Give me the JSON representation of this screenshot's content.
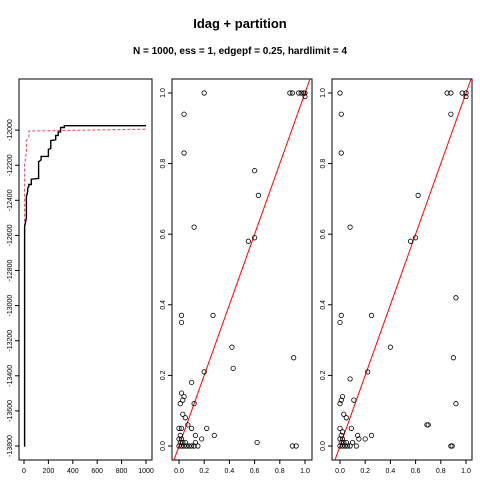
{
  "title": "Idag + partition",
  "subtitle": "N = 1000, ess = 1, edgepf = 0.25, hardlimit = 4",
  "colors": {
    "trace1": "#000000",
    "trace2": "#df536b",
    "diag": "#ff0000",
    "points": "#000000"
  },
  "chart_data": [
    {
      "type": "line",
      "xlim": [
        0,
        1000
      ],
      "ylim": [
        -13800,
        -11800
      ],
      "xticks": [
        "0",
        "200",
        "400",
        "600",
        "800",
        "1000"
      ],
      "xtick_values": [
        0,
        200,
        400,
        600,
        800,
        1000
      ],
      "yticks": [
        "-13800",
        "-13600",
        "-13400",
        "-13200",
        "-13000",
        "-12800",
        "-12600",
        "-12400",
        "-12200",
        "-12000"
      ],
      "ytick_values": [
        -13800,
        -13600,
        -13400,
        -13200,
        -13000,
        -12800,
        -12600,
        -12400,
        -12200,
        -12000
      ],
      "series": [
        {
          "x": [
            0,
            5,
            5,
            20,
            20,
            30,
            30,
            40,
            40,
            60,
            60,
            120,
            120,
            140,
            140,
            200,
            200,
            220,
            220,
            260,
            260,
            280,
            280,
            300,
            300,
            330,
            330,
            1000
          ],
          "y": [
            -13800,
            -13800,
            -12550,
            -12500,
            -12380,
            -12350,
            -12330,
            -12320,
            -12310,
            -12310,
            -12280,
            -12275,
            -12180,
            -12170,
            -12150,
            -12150,
            -12110,
            -12105,
            -12060,
            -12055,
            -12030,
            -12030,
            -12010,
            -12010,
            -11985,
            -11985,
            -11975,
            -11975
          ]
        },
        {
          "x": [
            0,
            5,
            5,
            20,
            20,
            40,
            40,
            1000
          ],
          "y": [
            -13800,
            -13800,
            -12200,
            -12120,
            -12060,
            -12040,
            -12005,
            -11995
          ]
        }
      ]
    },
    {
      "type": "scatter",
      "xlim": [
        0,
        1
      ],
      "ylim": [
        0,
        1
      ],
      "xticks": [
        "0.0",
        "0.2",
        "0.4",
        "0.6",
        "0.8",
        "1.0"
      ],
      "xtick_values": [
        0,
        0.2,
        0.4,
        0.6,
        0.8,
        1.0
      ],
      "yticks": [
        "0.0",
        "0.2",
        "0.4",
        "0.6",
        "0.8",
        "1.0"
      ],
      "ytick_values": [
        0,
        0.2,
        0.4,
        0.6,
        0.8,
        1.0
      ],
      "diagonal": true,
      "points": [
        [
          0.0,
          0.0
        ],
        [
          0.01,
          0.01
        ],
        [
          0.02,
          0.02
        ],
        [
          0.0,
          0.02
        ],
        [
          0.02,
          0.0
        ],
        [
          0.03,
          0.01
        ],
        [
          0.01,
          0.03
        ],
        [
          0.04,
          0.0
        ],
        [
          0.05,
          0.01
        ],
        [
          0.0,
          0.05
        ],
        [
          0.02,
          0.05
        ],
        [
          0.06,
          0.0
        ],
        [
          0.08,
          0.0
        ],
        [
          0.1,
          0.0
        ],
        [
          0.12,
          0.0
        ],
        [
          0.13,
          0.01
        ],
        [
          0.15,
          0.0
        ],
        [
          0.03,
          0.13
        ],
        [
          0.04,
          0.14
        ],
        [
          0.01,
          0.12
        ],
        [
          0.02,
          0.15
        ],
        [
          0.03,
          0.09
        ],
        [
          0.1,
          0.05
        ],
        [
          0.13,
          0.03
        ],
        [
          0.18,
          0.02
        ],
        [
          0.22,
          0.05
        ],
        [
          0.28,
          0.03
        ],
        [
          0.2,
          0.21
        ],
        [
          0.1,
          0.18
        ],
        [
          0.12,
          0.12
        ],
        [
          0.07,
          0.06
        ],
        [
          0.05,
          0.08
        ],
        [
          0.02,
          0.35
        ],
        [
          0.02,
          0.37
        ],
        [
          0.27,
          0.37
        ],
        [
          0.42,
          0.28
        ],
        [
          0.43,
          0.22
        ],
        [
          0.55,
          0.58
        ],
        [
          0.6,
          0.59
        ],
        [
          0.63,
          0.71
        ],
        [
          0.6,
          0.78
        ],
        [
          0.12,
          0.62
        ],
        [
          0.04,
          0.83
        ],
        [
          0.04,
          0.94
        ],
        [
          0.2,
          1.0
        ],
        [
          0.88,
          1.0
        ],
        [
          0.9,
          1.0
        ],
        [
          0.95,
          1.0
        ],
        [
          0.97,
          1.0
        ],
        [
          0.99,
          1.0
        ],
        [
          1.0,
          1.0
        ],
        [
          1.0,
          0.99
        ],
        [
          0.9,
          0.0
        ],
        [
          0.93,
          0.0
        ],
        [
          0.62,
          0.01
        ],
        [
          0.91,
          0.25
        ]
      ]
    },
    {
      "type": "scatter",
      "xlim": [
        0,
        1
      ],
      "ylim": [
        0,
        1
      ],
      "xticks": [
        "0.0",
        "0.2",
        "0.4",
        "0.6",
        "0.8",
        "1.0"
      ],
      "xtick_values": [
        0,
        0.2,
        0.4,
        0.6,
        0.8,
        1.0
      ],
      "yticks": [
        "0.0",
        "0.2",
        "0.4",
        "0.6",
        "0.8",
        "1.0"
      ],
      "ytick_values": [
        0,
        0.2,
        0.4,
        0.6,
        0.8,
        1.0
      ],
      "diagonal": true,
      "points": [
        [
          0.0,
          0.0
        ],
        [
          0.01,
          0.01
        ],
        [
          0.02,
          0.02
        ],
        [
          0.0,
          0.02
        ],
        [
          0.02,
          0.0
        ],
        [
          0.03,
          0.01
        ],
        [
          0.01,
          0.03
        ],
        [
          0.04,
          0.0
        ],
        [
          0.05,
          0.01
        ],
        [
          0.0,
          0.05
        ],
        [
          0.02,
          0.04
        ],
        [
          0.06,
          0.0
        ],
        [
          0.08,
          0.0
        ],
        [
          0.1,
          0.01
        ],
        [
          0.13,
          0.0
        ],
        [
          0.15,
          0.02
        ],
        [
          0.01,
          0.13
        ],
        [
          0.02,
          0.14
        ],
        [
          0.0,
          0.12
        ],
        [
          0.03,
          0.09
        ],
        [
          0.09,
          0.05
        ],
        [
          0.11,
          0.13
        ],
        [
          0.14,
          0.03
        ],
        [
          0.2,
          0.02
        ],
        [
          0.25,
          0.03
        ],
        [
          0.22,
          0.21
        ],
        [
          0.08,
          0.19
        ],
        [
          0.05,
          0.08
        ],
        [
          0.0,
          0.35
        ],
        [
          0.01,
          0.37
        ],
        [
          0.25,
          0.37
        ],
        [
          0.4,
          0.28
        ],
        [
          0.56,
          0.58
        ],
        [
          0.6,
          0.59
        ],
        [
          0.62,
          0.71
        ],
        [
          0.08,
          0.62
        ],
        [
          0.01,
          0.83
        ],
        [
          0.01,
          0.94
        ],
        [
          0.0,
          1.0
        ],
        [
          0.85,
          1.0
        ],
        [
          0.88,
          1.0
        ],
        [
          0.97,
          1.0
        ],
        [
          1.0,
          1.0
        ],
        [
          1.0,
          0.99
        ],
        [
          0.88,
          0.94
        ],
        [
          0.88,
          0.0
        ],
        [
          0.89,
          0.0
        ],
        [
          0.69,
          0.06
        ],
        [
          0.7,
          0.06
        ],
        [
          0.92,
          0.12
        ],
        [
          0.9,
          0.25
        ],
        [
          0.92,
          0.42
        ]
      ]
    }
  ]
}
